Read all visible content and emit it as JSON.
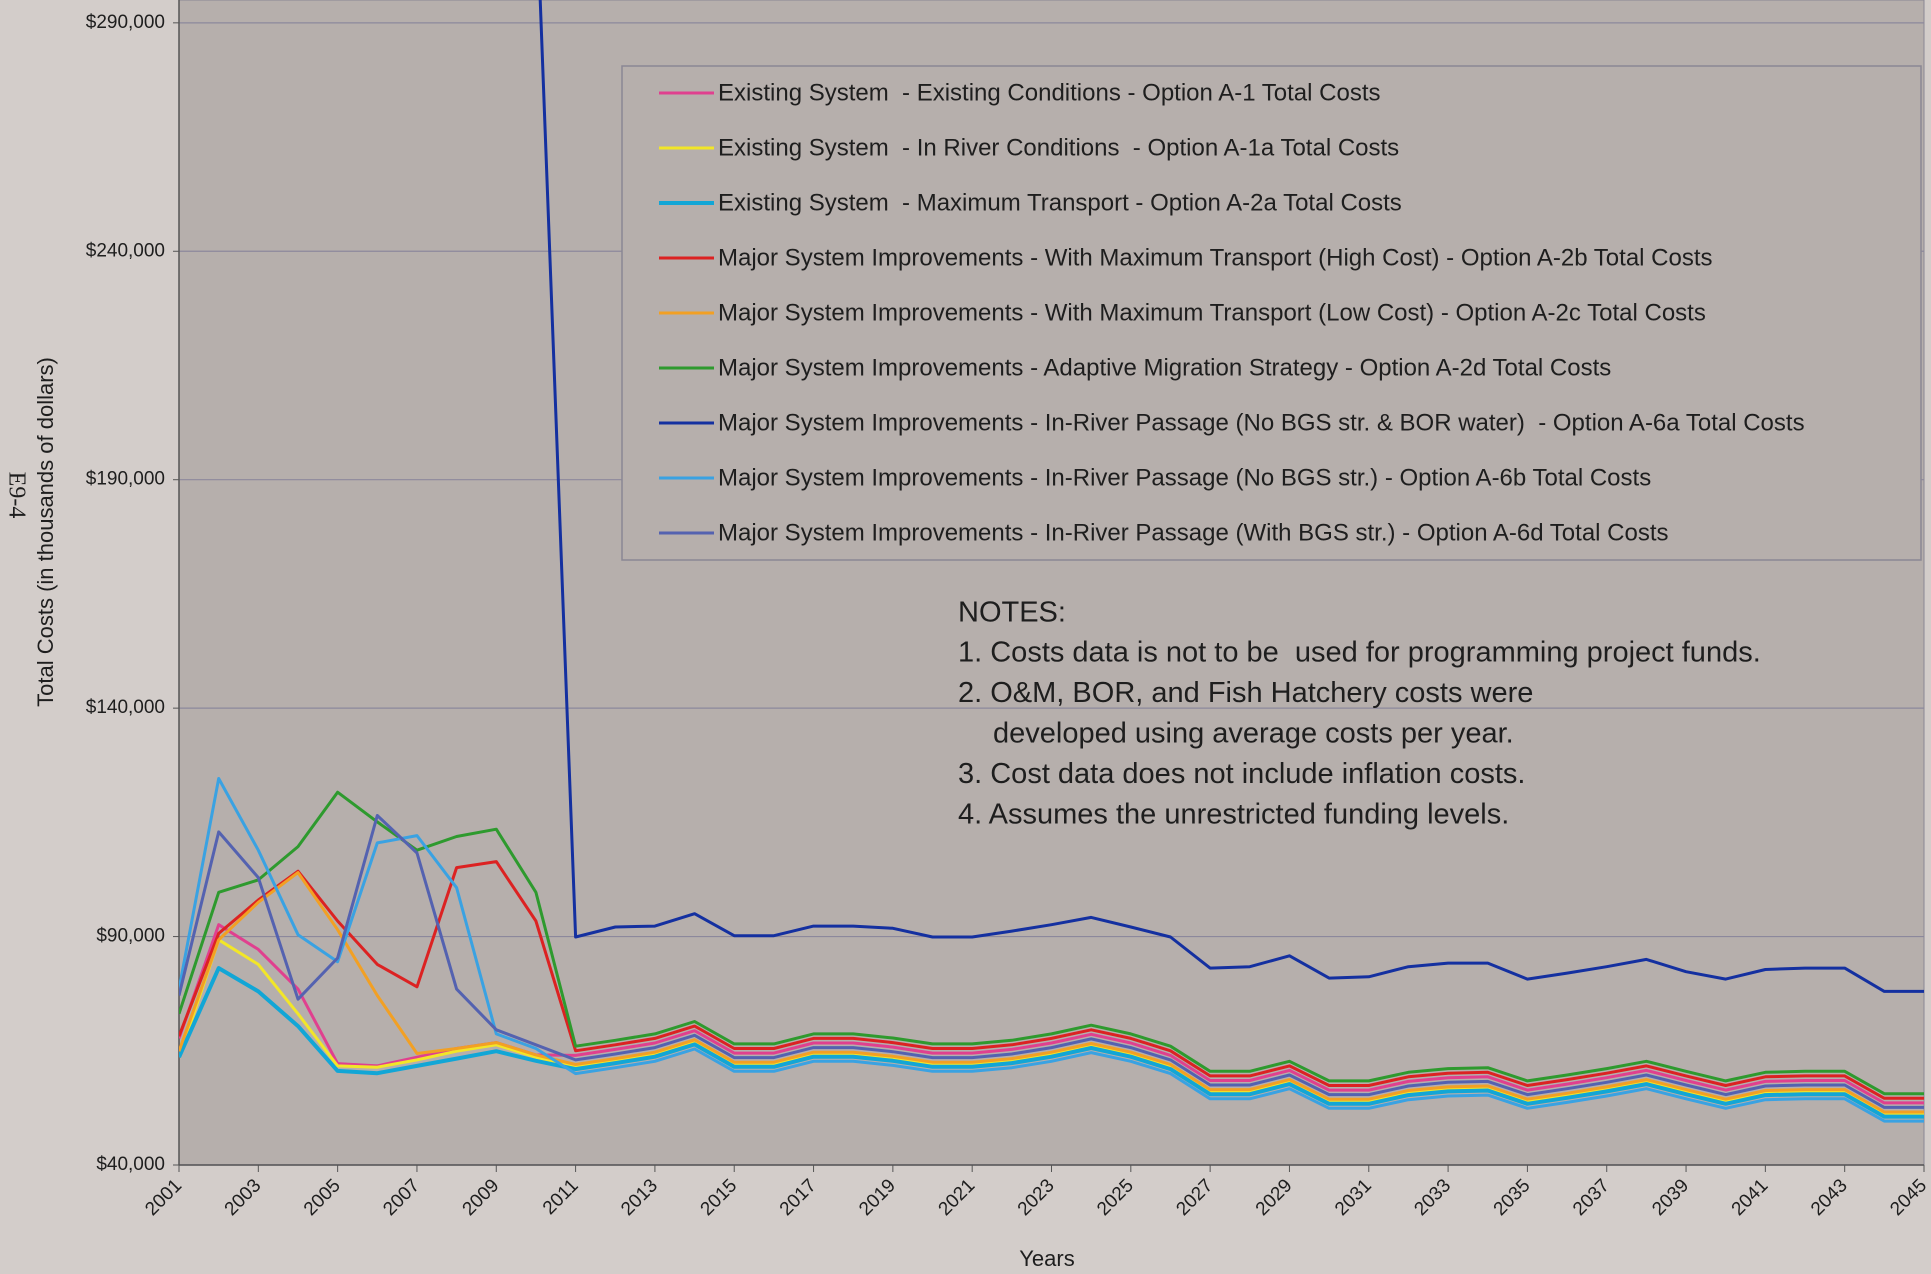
{
  "chart_data": {
    "type": "line",
    "page_label": "E9-4",
    "xlabel": "Years",
    "ylabel": "Total Costs (in thousands of dollars)",
    "x": [
      2001,
      2002,
      2003,
      2004,
      2005,
      2006,
      2007,
      2008,
      2009,
      2010,
      2011,
      2012,
      2013,
      2014,
      2015,
      2016,
      2017,
      2018,
      2019,
      2020,
      2021,
      2022,
      2023,
      2024,
      2025,
      2026,
      2027,
      2028,
      2029,
      2030,
      2031,
      2032,
      2033,
      2034,
      2035,
      2036,
      2037,
      2038,
      2039,
      2040,
      2041,
      2042,
      2043,
      2044,
      2045
    ],
    "xlim": [
      2001,
      2045
    ],
    "xticks": [
      2001,
      2003,
      2005,
      2007,
      2009,
      2011,
      2013,
      2015,
      2017,
      2019,
      2021,
      2023,
      2025,
      2027,
      2029,
      2031,
      2033,
      2035,
      2037,
      2039,
      2041,
      2043,
      2045
    ],
    "ylim": [
      40000,
      295000
    ],
    "yticks": [
      {
        "value": 40000,
        "label": "$40,000"
      },
      {
        "value": 90000,
        "label": "$90,000"
      },
      {
        "value": 140000,
        "label": "$140,000"
      },
      {
        "value": 190000,
        "label": "$190,000"
      },
      {
        "value": 240000,
        "label": "$240,000"
      },
      {
        "value": 290000,
        "label": "$290,000"
      }
    ],
    "grid": true,
    "legend_position": "upper right",
    "notes": {
      "title": "NOTES:",
      "lines": [
        "1. Costs data is not to be  used for programming project funds.",
        "2. O&M, BOR, and Fish Hatchery costs were",
        "developed using average costs per year.",
        "3. Cost data does not include inflation costs.",
        "4. Assumes the unrestricted funding levels."
      ]
    },
    "series": [
      {
        "name": "Existing System  - Existing Conditions - Option A-1 Total Costs",
        "color": "#e0408f",
        "line_width": 3,
        "values": [
          67700,
          92600,
          87200,
          78500,
          62200,
          61700,
          63600,
          65500,
          66800,
          64100,
          64000,
          65300,
          66700,
          69400,
          64500,
          64500,
          66700,
          66700,
          65800,
          64500,
          64500,
          65300,
          66700,
          68600,
          66700,
          64000,
          58500,
          58500,
          60700,
          56400,
          56400,
          58300,
          59100,
          59300,
          56400,
          57700,
          59100,
          60700,
          58500,
          56400,
          58300,
          58500,
          58500,
          53600,
          53600
        ]
      },
      {
        "name": "Existing System  - In River Conditions  - Option A-1a Total Costs",
        "color": "#f2e628",
        "line_width": 3,
        "values": [
          63600,
          89300,
          83900,
          73100,
          61700,
          61400,
          63000,
          64900,
          66300,
          63600,
          61500,
          62800,
          64200,
          66900,
          62000,
          62000,
          64200,
          64200,
          63300,
          62000,
          62000,
          62800,
          64200,
          66100,
          64200,
          61500,
          56000,
          56000,
          58200,
          53900,
          53900,
          55800,
          56600,
          56800,
          53900,
          55200,
          56600,
          58200,
          56000,
          53900,
          55800,
          56000,
          56000,
          51100,
          51100
        ]
      },
      {
        "name": "Existing System  - Maximum Transport - Option A-2a Total Costs",
        "color": "#12a6d6",
        "line_width": 4,
        "values": [
          63600,
          83100,
          78000,
          70400,
          60600,
          60100,
          61700,
          63300,
          64900,
          62800,
          61000,
          62300,
          63700,
          66400,
          61500,
          61500,
          63700,
          63700,
          62800,
          61500,
          61500,
          62300,
          63700,
          65600,
          63700,
          61000,
          55500,
          55500,
          57700,
          53400,
          53400,
          55300,
          56100,
          56300,
          53400,
          54700,
          56100,
          57700,
          55500,
          53400,
          55300,
          55500,
          55500,
          50600,
          50600
        ]
      },
      {
        "name": "Major System Improvements - With Maximum Transport (High Cost) - Option A-2b Total Costs",
        "color": "#dc2222",
        "line_width": 3,
        "values": [
          68200,
          90700,
          98000,
          104300,
          93400,
          83900,
          79000,
          105100,
          106400,
          93400,
          65000,
          66300,
          67700,
          70400,
          65500,
          65500,
          67700,
          67700,
          66800,
          65500,
          65500,
          66300,
          67700,
          69600,
          67700,
          65000,
          59500,
          59500,
          61700,
          57400,
          57400,
          59300,
          60100,
          60300,
          57400,
          58700,
          60100,
          61700,
          59500,
          57400,
          59300,
          59500,
          59500,
          54600,
          54600
        ]
      },
      {
        "name": "Major System Improvements - With Maximum Transport (Low Cost) - Option A-2c Total Costs",
        "color": "#f2a024",
        "line_width": 3,
        "values": [
          64900,
          89300,
          97500,
          104000,
          91500,
          77100,
          64400,
          65500,
          66800,
          64100,
          62000,
          63300,
          64700,
          67400,
          62500,
          62500,
          64700,
          64700,
          63800,
          62500,
          62500,
          63300,
          64700,
          66600,
          64700,
          62000,
          56500,
          56500,
          58700,
          54400,
          54400,
          56300,
          57100,
          57300,
          54400,
          55700,
          57100,
          58700,
          56500,
          54400,
          56300,
          56500,
          56500,
          51600,
          51600
        ]
      },
      {
        "name": "Major System Improvements - Adaptive Migration Strategy - Option A-2d Total Costs",
        "color": "#2e9a2e",
        "line_width": 3,
        "values": [
          73100,
          99700,
          102400,
          109700,
          121600,
          115100,
          108900,
          111900,
          113500,
          99700,
          66000,
          67300,
          68700,
          71400,
          66500,
          66500,
          68700,
          68700,
          67800,
          66500,
          66500,
          67300,
          68700,
          70600,
          68700,
          66000,
          60500,
          60500,
          62700,
          58400,
          58400,
          60300,
          61100,
          61300,
          58400,
          59700,
          61100,
          62700,
          60500,
          58400,
          60300,
          60500,
          60500,
          55600,
          55600
        ]
      },
      {
        "name": "Major System Improvements - In-River Passage (No BGS str. & BOR water)  - Option A-6a Total Costs",
        "color": "#1430a0",
        "line_width": 3,
        "values": [
          null,
          null,
          null,
          null,
          null,
          null,
          null,
          null,
          null,
          320000,
          89900,
          92100,
          92300,
          95000,
          90200,
          90200,
          92300,
          92300,
          91800,
          89900,
          89900,
          91200,
          92600,
          94200,
          92100,
          89900,
          83100,
          83400,
          85800,
          80900,
          81200,
          83400,
          84200,
          84200,
          80700,
          82000,
          83400,
          85000,
          82300,
          80700,
          82800,
          83100,
          83100,
          78000,
          78000
        ]
      },
      {
        "name": "Major System Improvements - In-River Passage (No BGS str.) - Option A-6b Total Costs",
        "color": "#3aa2e2",
        "line_width": 3,
        "values": [
          78500,
          124600,
          108900,
          90400,
          84500,
          110500,
          112100,
          100700,
          68700,
          65500,
          60000,
          61300,
          62700,
          65400,
          60500,
          60500,
          62700,
          62700,
          61800,
          60500,
          60500,
          61300,
          62700,
          64600,
          62700,
          60000,
          54500,
          54500,
          56700,
          52400,
          52400,
          54300,
          55100,
          55300,
          52400,
          53700,
          55100,
          56700,
          54500,
          52400,
          54300,
          54500,
          54500,
          49600,
          49600
        ]
      },
      {
        "name": "Major System Improvements - In-River Passage (With BGS str.) - Option A-6d Total Costs",
        "color": "#5462b0",
        "line_width": 3,
        "values": [
          77100,
          112900,
          102900,
          76300,
          85300,
          116500,
          108300,
          78500,
          69600,
          66300,
          63000,
          64300,
          65700,
          68400,
          63500,
          63500,
          65700,
          65700,
          64800,
          63500,
          63500,
          64300,
          65700,
          67600,
          65700,
          63000,
          57500,
          57500,
          59700,
          55400,
          55400,
          57300,
          58100,
          58300,
          55400,
          56700,
          58100,
          59700,
          57500,
          55400,
          57300,
          57500,
          57500,
          52600,
          52600
        ]
      }
    ]
  }
}
